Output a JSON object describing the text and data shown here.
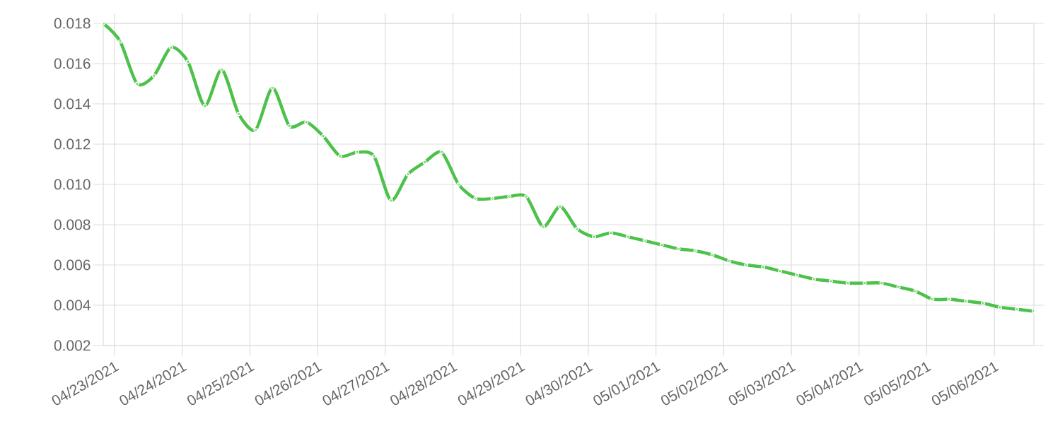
{
  "chart_data": {
    "type": "line",
    "color": "#4cc24a",
    "marker": "circle",
    "grid": true,
    "xlim": [
      "2021-04-22T20:00",
      "2021-05-06T14:00"
    ],
    "ylim": [
      0.002,
      0.018
    ],
    "yticks": [
      0.002,
      0.004,
      0.006,
      0.008,
      {
        "value": 0.01,
        "label": "0.010"
      },
      0.012,
      0.014,
      0.016,
      0.018
    ],
    "xticks": [
      {
        "value": "2021-04-23",
        "label": "04/23/2021"
      },
      {
        "value": "2021-04-24",
        "label": "04/24/2021"
      },
      {
        "value": "2021-04-25",
        "label": "04/25/2021"
      },
      {
        "value": "2021-04-26",
        "label": "04/26/2021"
      },
      {
        "value": "2021-04-27",
        "label": "04/27/2021"
      },
      {
        "value": "2021-04-28",
        "label": "04/28/2021"
      },
      {
        "value": "2021-04-29",
        "label": "04/29/2021"
      },
      {
        "value": "2021-04-30",
        "label": "04/30/2021"
      },
      {
        "value": "2021-05-01",
        "label": "05/01/2021"
      },
      {
        "value": "2021-05-02",
        "label": "05/02/2021"
      },
      {
        "value": "2021-05-03",
        "label": "05/03/2021"
      },
      {
        "value": "2021-05-04",
        "label": "05/04/2021"
      },
      {
        "value": "2021-05-05",
        "label": "05/05/2021"
      },
      {
        "value": "2021-05-06",
        "label": "05/06/2021"
      }
    ],
    "x": [
      "2021-04-22T20:00",
      "2021-04-23T02:00",
      "2021-04-23T08:00",
      "2021-04-23T14:00",
      "2021-04-23T20:00",
      "2021-04-24T02:00",
      "2021-04-24T08:00",
      "2021-04-24T14:00",
      "2021-04-24T20:00",
      "2021-04-25T02:00",
      "2021-04-25T08:00",
      "2021-04-25T14:00",
      "2021-04-25T20:00",
      "2021-04-26T02:00",
      "2021-04-26T08:00",
      "2021-04-26T14:00",
      "2021-04-26T20:00",
      "2021-04-27T02:00",
      "2021-04-27T08:00",
      "2021-04-27T14:00",
      "2021-04-27T20:00",
      "2021-04-28T02:00",
      "2021-04-28T08:00",
      "2021-04-28T14:00",
      "2021-04-28T20:00",
      "2021-04-29T02:00",
      "2021-04-29T08:00",
      "2021-04-29T14:00",
      "2021-04-29T20:00",
      "2021-04-30T02:00",
      "2021-04-30T08:00",
      "2021-04-30T14:00",
      "2021-04-30T20:00",
      "2021-05-01T02:00",
      "2021-05-01T08:00",
      "2021-05-01T14:00",
      "2021-05-01T20:00",
      "2021-05-02T02:00",
      "2021-05-02T08:00",
      "2021-05-02T14:00",
      "2021-05-02T20:00",
      "2021-05-03T02:00",
      "2021-05-03T08:00",
      "2021-05-03T14:00",
      "2021-05-03T20:00",
      "2021-05-04T02:00",
      "2021-05-04T08:00",
      "2021-05-04T14:00",
      "2021-05-04T20:00",
      "2021-05-05T02:00",
      "2021-05-05T08:00",
      "2021-05-05T14:00",
      "2021-05-05T20:00",
      "2021-05-06T02:00",
      "2021-05-06T08:00",
      "2021-05-06T14:00"
    ],
    "values": [
      0.018,
      0.0171,
      0.015,
      0.0154,
      0.0168,
      0.0161,
      0.0139,
      0.0157,
      0.0135,
      0.0127,
      0.0148,
      0.0129,
      0.0131,
      0.0124,
      0.0114,
      0.0116,
      0.0114,
      0.0092,
      0.0105,
      0.0111,
      0.0116,
      0.01,
      0.0093,
      0.0093,
      0.0094,
      0.0094,
      0.0079,
      0.0089,
      0.0078,
      0.0074,
      0.0076,
      0.0074,
      0.0072,
      0.007,
      0.0068,
      0.0067,
      0.0065,
      0.0062,
      0.006,
      0.0059,
      0.0057,
      0.0055,
      0.0053,
      0.0052,
      0.0051,
      0.0051,
      0.0051,
      0.0049,
      0.0047,
      0.0043,
      0.0043,
      0.0042,
      0.0041,
      0.0039,
      0.0038,
      0.0037
    ]
  }
}
